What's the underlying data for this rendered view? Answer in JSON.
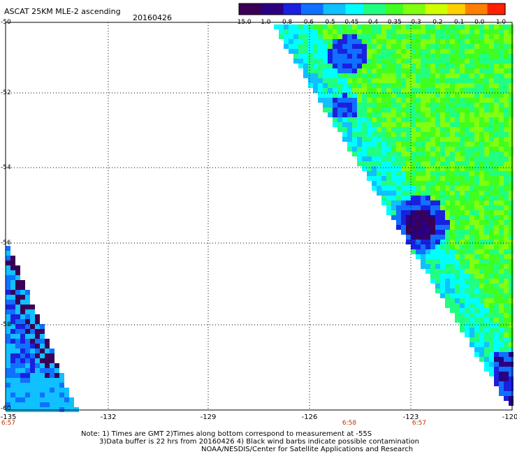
{
  "header": {
    "title": "ASCAT 25KM MLE-2 ascending",
    "date": "20160426"
  },
  "colorbar": {
    "labels": [
      "-15.0",
      "-1.0",
      "-0.8",
      "-0.6",
      "-0.5",
      "-0.45",
      "-0.4",
      "-0.35",
      "-0.3",
      "-0.2",
      "-0.1",
      "0.0",
      "1.0"
    ],
    "colors": [
      "#3a0055",
      "#2a0080",
      "#1a20e0",
      "#1070ff",
      "#10c0ff",
      "#00ffff",
      "#20ff80",
      "#40ff20",
      "#80ff10",
      "#d0ff00",
      "#ffd000",
      "#ff8000",
      "#ff2000"
    ]
  },
  "map": {
    "lat_labels": [
      "-50",
      "-52",
      "-54",
      "-56",
      "-58",
      "-60"
    ],
    "lon_labels": [
      "-135",
      "-132",
      "-129",
      "-126",
      "-123",
      "-120"
    ],
    "time_labels": [
      "6:57",
      "6:58",
      "6:57"
    ]
  },
  "notes": {
    "line1": "Note: 1) Times are GMT 2)Times along bottom correspond to measurement at -55S",
    "line2": "3)Data buffer is 22 hrs from 20160426 4) Black wind barbs indicate possible contamination",
    "line3": "NOAA/NESDIS/Center for Satellite Applications and Research"
  }
}
